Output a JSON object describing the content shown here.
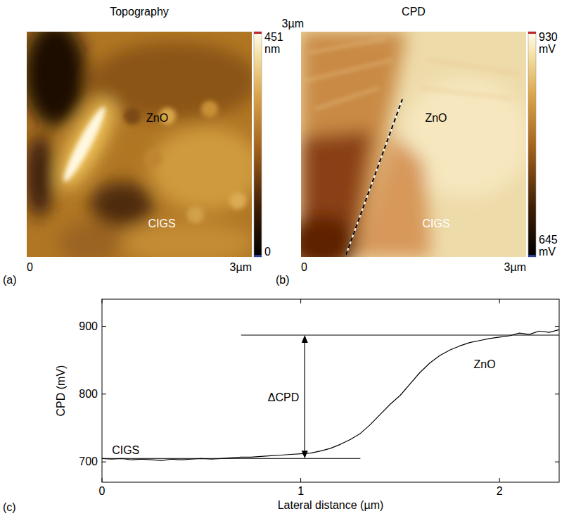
{
  "panels": [
    {
      "letter": "(a)",
      "title": "Topography",
      "labels": [
        "ZnO",
        "CIGS"
      ],
      "xlim": [
        0,
        3
      ],
      "xticks": [
        0,
        {
          "value": 3,
          "label": "3µm"
        }
      ],
      "colorbar": {
        "range": [
          0,
          451
        ],
        "ticks": [
          0,
          {
            "value": 451,
            "label": "451 nm"
          }
        ]
      }
    },
    {
      "letter": "(b)",
      "title": "CPD",
      "labels": [
        "ZnO",
        "CIGS"
      ],
      "xlim": [
        0,
        3
      ],
      "xticks": [
        0,
        {
          "value": 3,
          "label": "3µm"
        }
      ],
      "ylim": [
        0,
        3
      ],
      "yticks": [
        {
          "value": 3,
          "label": "3µm"
        }
      ],
      "colorbar": {
        "range": [
          645,
          930
        ],
        "ticks": [
          {
            "value": 645,
            "label": "645 mV"
          },
          {
            "value": 930,
            "label": "930 mV"
          }
        ]
      }
    }
  ],
  "chart_data": {
    "type": "line",
    "letter": "(c)",
    "xlabel": "Lateral distance (µm)",
    "ylabel": "CPD (mV)",
    "color": "#000000",
    "x": [
      0,
      0.05,
      0.1,
      0.15,
      0.2,
      0.25,
      0.3,
      0.35,
      0.4,
      0.45,
      0.5,
      0.55,
      0.6,
      0.65,
      0.7,
      0.75,
      0.8,
      0.85,
      0.9,
      0.95,
      1.0,
      1.05,
      1.1,
      1.15,
      1.2,
      1.25,
      1.3,
      1.35,
      1.4,
      1.45,
      1.5,
      1.55,
      1.6,
      1.65,
      1.7,
      1.75,
      1.8,
      1.85,
      1.9,
      1.95,
      2.0,
      2.05,
      2.1,
      2.15,
      2.2,
      2.25,
      2.3
    ],
    "values": [
      705,
      704,
      705,
      703,
      704,
      703,
      702,
      704,
      703,
      704,
      705,
      704,
      705,
      706,
      707,
      707,
      708,
      709,
      710,
      711,
      712,
      713,
      716,
      720,
      726,
      733,
      742,
      755,
      770,
      785,
      798,
      815,
      832,
      846,
      857,
      865,
      871,
      876,
      879,
      882,
      884,
      886,
      890,
      888,
      893,
      891,
      895
    ],
    "xlim": [
      0,
      2.3
    ],
    "xticks": [
      0,
      1,
      2
    ],
    "ylim": [
      670,
      940
    ],
    "yticks": [
      700,
      800,
      900
    ],
    "reference_lines": [
      {
        "y": 705,
        "x_from": 0,
        "x_to": 1.3
      },
      {
        "y": 887,
        "x_from": 0.7,
        "x_to": 2.3
      }
    ],
    "annotations": [
      {
        "text": "ΔCPD",
        "x": 1.02,
        "y_from": 705,
        "y_to": 887
      },
      {
        "text": "CIGS",
        "x": 0.05,
        "y": 712
      },
      {
        "text": "ZnO",
        "x": 1.87,
        "y": 838
      }
    ]
  }
}
